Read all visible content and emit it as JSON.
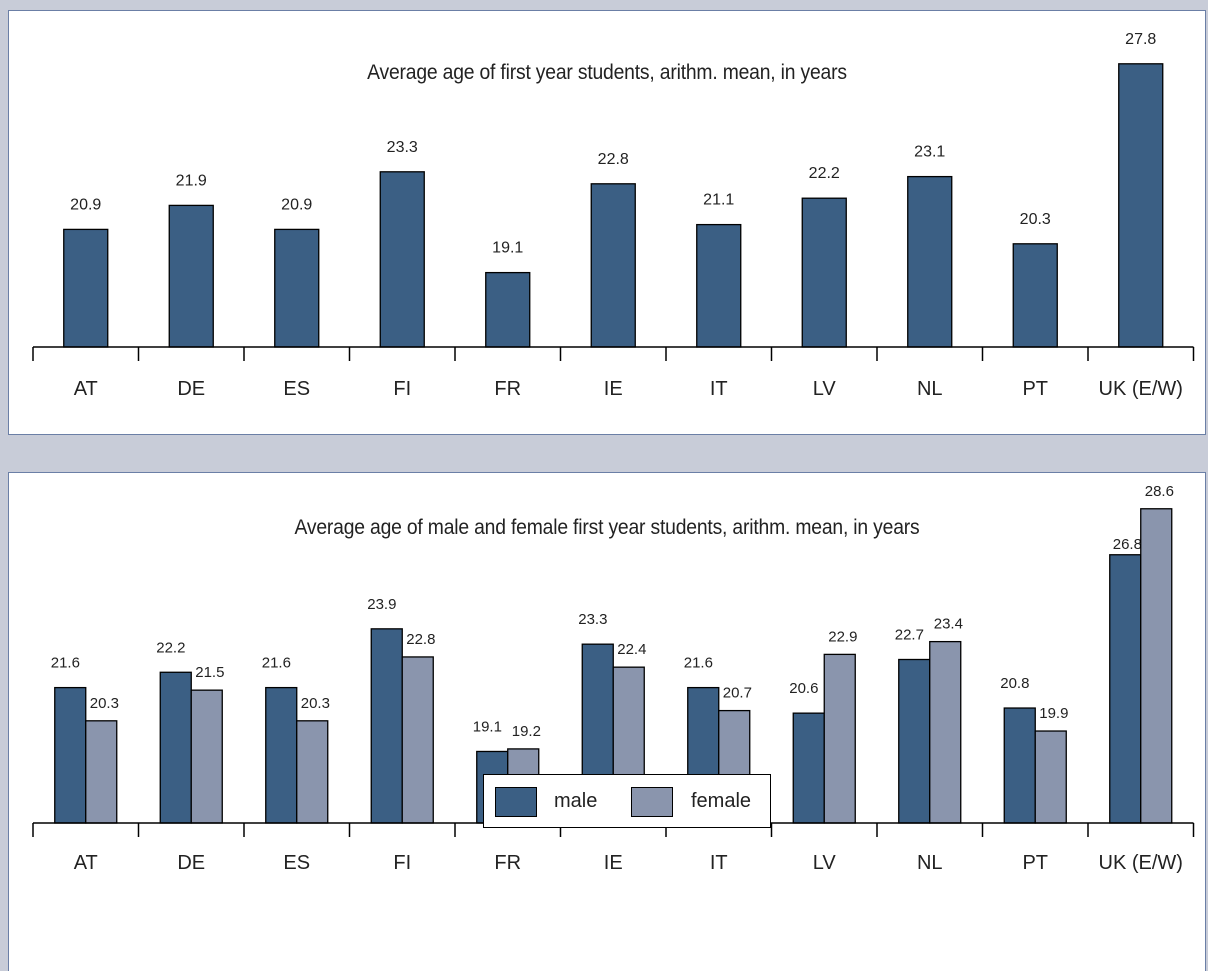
{
  "colors": {
    "male": "#3b5f84",
    "female": "#8a95ad",
    "single": "#3b5f84"
  },
  "chart_data": [
    {
      "type": "bar",
      "title": "Average age of first year students, arithm. mean, in years",
      "categories": [
        "AT",
        "DE",
        "ES",
        "FI",
        "FR",
        "IE",
        "IT",
        "LV",
        "NL",
        "PT",
        "UK (E/W)"
      ],
      "values": [
        20.9,
        21.9,
        20.9,
        23.3,
        19.1,
        22.8,
        21.1,
        22.2,
        23.1,
        20.3,
        27.8
      ],
      "ylim": [
        16.0,
        30.0
      ],
      "grid": false
    },
    {
      "type": "bar",
      "title": "Average age of male and female first year students, arithm. mean, in years",
      "categories": [
        "AT",
        "DE",
        "ES",
        "FI",
        "FR",
        "IE",
        "IT",
        "LV",
        "NL",
        "PT",
        "UK (E/W)"
      ],
      "series": [
        {
          "name": "male",
          "values": [
            21.6,
            22.2,
            21.6,
            23.9,
            19.1,
            23.3,
            21.6,
            20.6,
            22.7,
            20.8,
            26.8
          ]
        },
        {
          "name": "female",
          "values": [
            20.3,
            21.5,
            20.3,
            22.8,
            19.2,
            22.4,
            20.7,
            22.9,
            23.4,
            19.9,
            28.6
          ]
        }
      ],
      "ylim": [
        16.3,
        30.0
      ],
      "legend": "bottom-center",
      "grid": false
    }
  ]
}
